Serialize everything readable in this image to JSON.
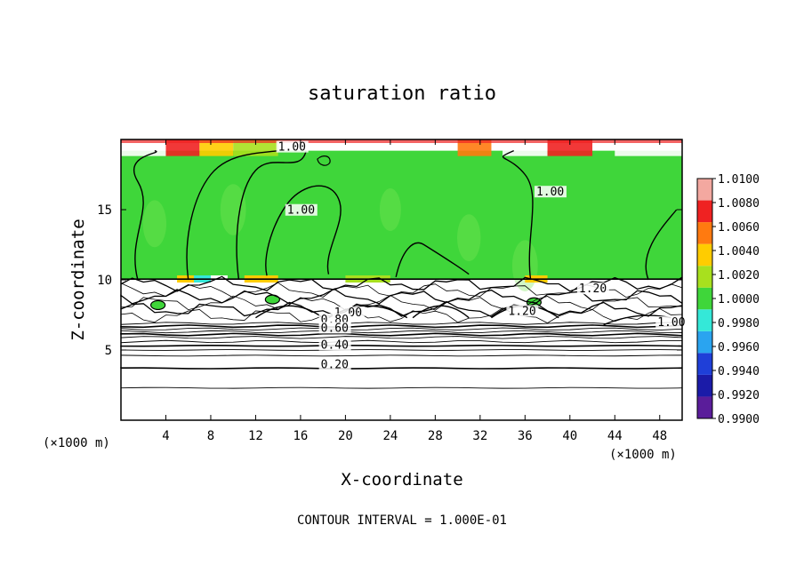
{
  "chart_data": {
    "type": "heatmap",
    "title": "saturation ratio",
    "xlabel": "X-coordinate",
    "ylabel": "Z-coordinate",
    "x_unit": "(×1000 m)",
    "z_unit": "(×1000 m)",
    "xlim": [
      0,
      50
    ],
    "ylim": [
      0,
      20
    ],
    "x_ticks": [
      4,
      8,
      12,
      16,
      20,
      24,
      28,
      32,
      36,
      40,
      44,
      48
    ],
    "x_tick_labels": [
      "4",
      "8",
      "12",
      "16",
      "20",
      "24",
      "28",
      "32",
      "36",
      "40",
      "44",
      "48"
    ],
    "y_ticks": [
      5,
      10,
      15
    ],
    "y_tick_labels": [
      "5",
      "10",
      "15"
    ],
    "colorbar": {
      "levels": [
        0.99,
        0.992,
        0.994,
        0.996,
        0.998,
        1.0,
        1.002,
        1.004,
        1.006,
        1.008,
        1.01
      ],
      "labels": [
        "0.9900",
        "0.9920",
        "0.9940",
        "0.9960",
        "0.9980",
        "1.0000",
        "1.0020",
        "1.0040",
        "1.0060",
        "1.0080",
        "1.0100"
      ],
      "colors": [
        "#5a1d9a",
        "#1b1ba8",
        "#1f3fd8",
        "#2aa4f0",
        "#34e8d8",
        "#3fd63a",
        "#a8e01e",
        "#ffcc00",
        "#ff7a10",
        "#ef2222",
        "#f3a8a0"
      ]
    },
    "contour_interval": "CONTOUR INTERVAL = 1.000E-01",
    "contour_labels": [
      {
        "text": "1.00",
        "x": 14.0,
        "z": 19.2
      },
      {
        "text": "1.00",
        "x": 14.8,
        "z": 14.7
      },
      {
        "text": "1.00",
        "x": 37.0,
        "z": 16.0
      },
      {
        "text": "1.20",
        "x": 40.8,
        "z": 9.1
      },
      {
        "text": "1.00",
        "x": 19.0,
        "z": 7.4
      },
      {
        "text": "1.20",
        "x": 34.5,
        "z": 7.5
      },
      {
        "text": "1.00",
        "x": 47.8,
        "z": 6.7
      },
      {
        "text": "0.80",
        "x": 17.8,
        "z": 6.9
      },
      {
        "text": "0.60",
        "x": 17.8,
        "z": 6.3
      },
      {
        "text": "0.40",
        "x": 17.8,
        "z": 5.1
      },
      {
        "text": "0.20",
        "x": 17.8,
        "z": 3.7
      }
    ],
    "cloud_layer": {
      "z_bottom": 10.0,
      "z_top": 19.2,
      "dominant_value": 1.0
    },
    "subsaturated_region": {
      "z_bottom": 0,
      "z_top": 10.0
    }
  }
}
